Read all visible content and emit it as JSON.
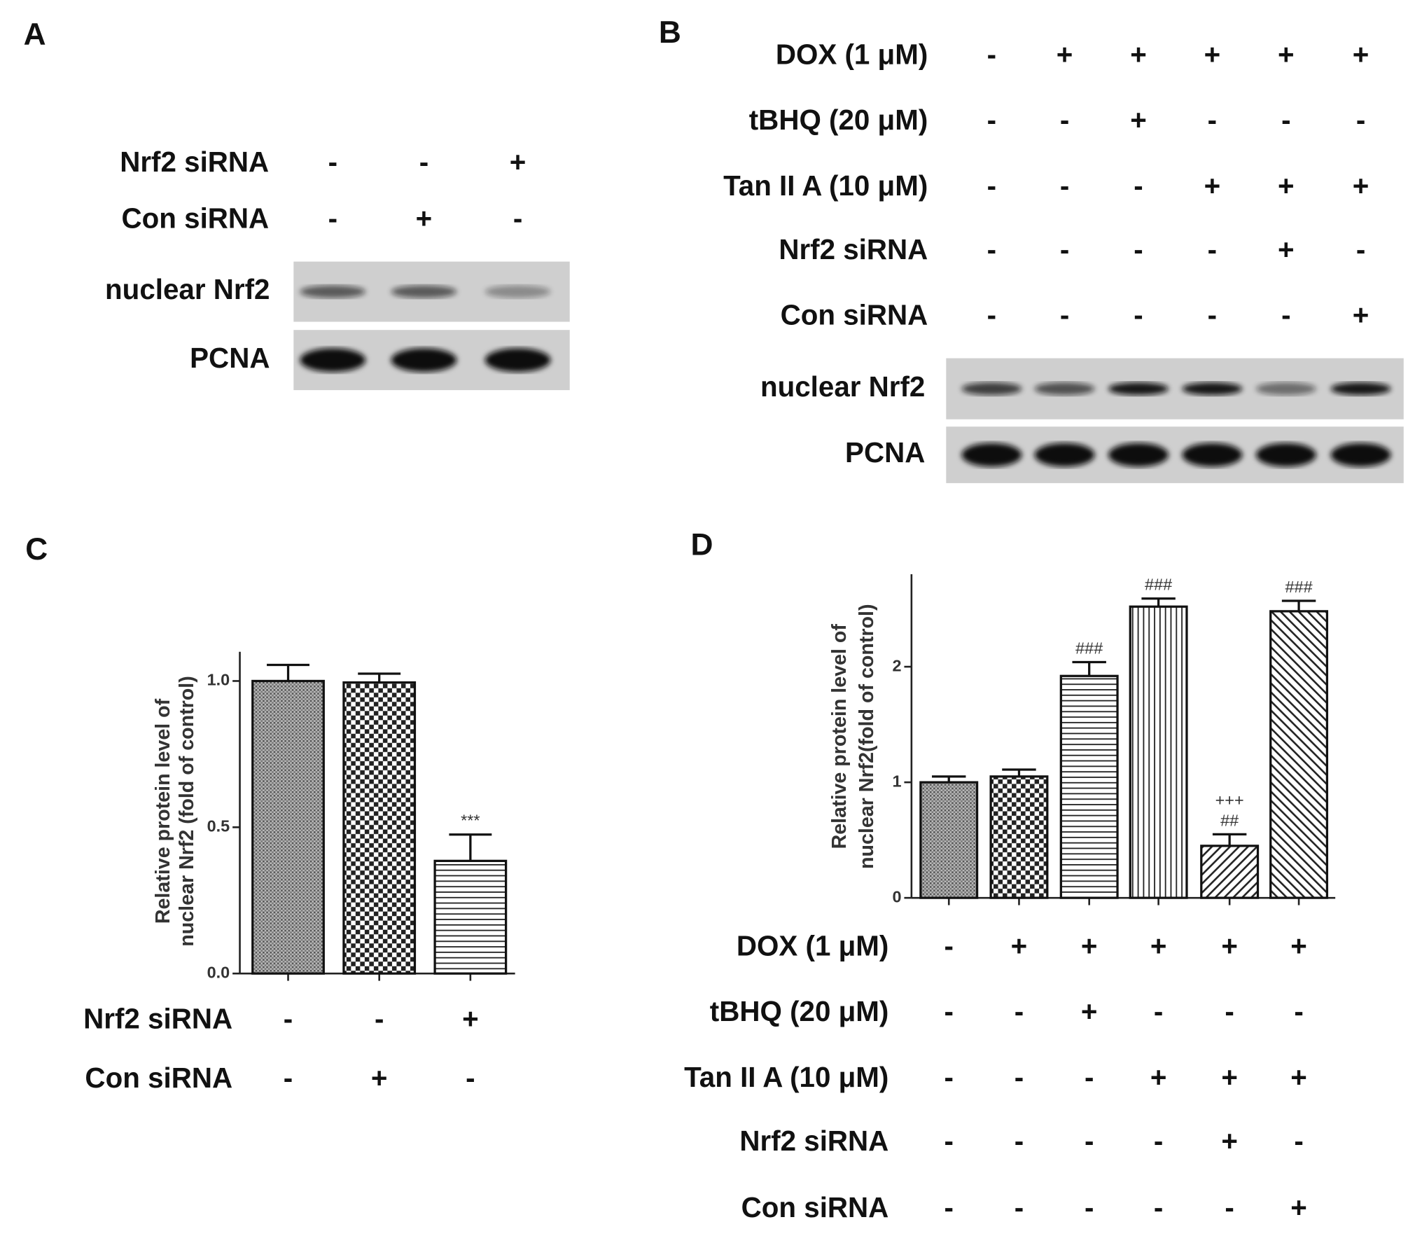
{
  "blots": [
    {
      "panel": "A",
      "treatments": [
        {
          "label": "Nrf2 siRNA",
          "values": [
            "-",
            "-",
            "+"
          ]
        },
        {
          "label": "Con siRNA",
          "values": [
            "-",
            "+",
            "-"
          ]
        }
      ],
      "bands": [
        "nuclear Nrf2",
        "PCNA"
      ]
    },
    {
      "panel": "B",
      "treatments": [
        {
          "label": "DOX (1 μM)",
          "values": [
            "-",
            "+",
            "+",
            "+",
            "+",
            "+"
          ]
        },
        {
          "label": "tBHQ (20 μM)",
          "values": [
            "-",
            "-",
            "+",
            "-",
            "-",
            "-"
          ]
        },
        {
          "label": "Tan II A (10 μM)",
          "values": [
            "-",
            "-",
            "-",
            "+",
            "+",
            "+"
          ]
        },
        {
          "label": "Nrf2 siRNA",
          "values": [
            "-",
            "-",
            "-",
            "-",
            "+",
            "-"
          ]
        },
        {
          "label": "Con siRNA",
          "values": [
            "-",
            "-",
            "-",
            "-",
            "-",
            "+"
          ]
        }
      ],
      "bands": [
        "nuclear Nrf2",
        "PCNA"
      ]
    }
  ],
  "chart_data": [
    {
      "type": "bar",
      "panel": "C",
      "y_label": [
        "Relative protein level of",
        "nuclear Nrf2 (fold of control)"
      ],
      "values": [
        1.0,
        0.995,
        0.385
      ],
      "errors": [
        0.055,
        0.03,
        0.09
      ],
      "annotations": [
        [],
        [],
        [
          "***"
        ]
      ],
      "ylim": [
        0,
        1.1
      ],
      "yticks": [
        {
          "value": 0,
          "label": "0.0"
        },
        {
          "value": 0.5,
          "label": "0.5"
        },
        {
          "value": 1,
          "label": "1.0"
        }
      ],
      "treatments": [
        {
          "label": "Nrf2 siRNA",
          "values": [
            "-",
            "-",
            "+"
          ]
        },
        {
          "label": "Con siRNA",
          "values": [
            "-",
            "+",
            "-"
          ]
        }
      ]
    },
    {
      "type": "bar",
      "panel": "D",
      "y_label": [
        "Relative protein level of",
        "nuclear Nrf2(fold of control)"
      ],
      "values": [
        1.0,
        1.05,
        1.92,
        2.52,
        0.45,
        2.48
      ],
      "errors": [
        0.05,
        0.06,
        0.12,
        0.07,
        0.1,
        0.09
      ],
      "annotations": [
        [],
        [],
        [
          "###"
        ],
        [
          "###"
        ],
        [
          "+++",
          "##"
        ],
        [
          "###"
        ]
      ],
      "ylim": [
        0,
        2.8
      ],
      "yticks": [
        0,
        1,
        2
      ],
      "treatments": [
        {
          "label": "DOX (1 μM)",
          "values": [
            "-",
            "+",
            "+",
            "+",
            "+",
            "+"
          ]
        },
        {
          "label": "tBHQ (20 μM)",
          "values": [
            "-",
            "-",
            "+",
            "-",
            "-",
            "-"
          ]
        },
        {
          "label": "Tan II A (10 μM)",
          "values": [
            "-",
            "-",
            "-",
            "+",
            "+",
            "+"
          ]
        },
        {
          "label": "Nrf2 siRNA",
          "values": [
            "-",
            "-",
            "-",
            "-",
            "+",
            "-"
          ]
        },
        {
          "label": "Con siRNA",
          "values": [
            "-",
            "-",
            "-",
            "-",
            "-",
            "+"
          ]
        }
      ]
    }
  ]
}
